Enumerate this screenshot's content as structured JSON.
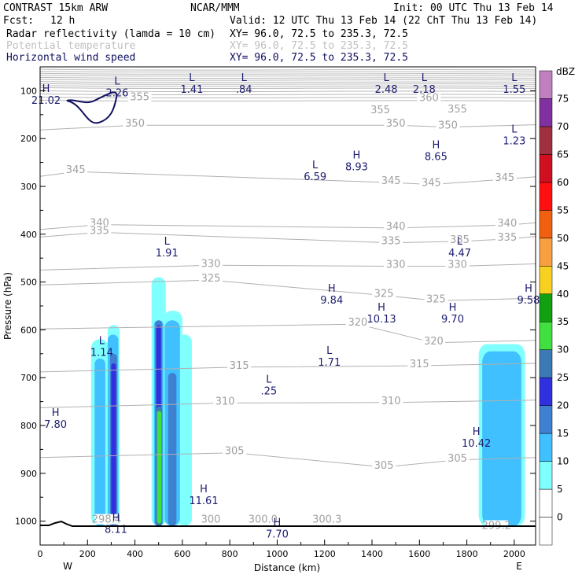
{
  "header": {
    "model": "CONTRAST 15km ARW",
    "center": "NCAR/MMM",
    "init": "Init: 00 UTC Thu 13 Feb 14",
    "fcst_label": "Fcst:",
    "fcst_value": "12 h",
    "valid": "Valid: 12 UTC Thu 13 Feb 14 (22 ChT Thu 13 Feb 14)",
    "fields": [
      {
        "name": "Radar reflectivity (lamda = 10 cm)",
        "xy": "XY=  96.0, 72.5 to 235.3, 72.5",
        "color": "#000000"
      },
      {
        "name": "Potential temperature",
        "xy": "XY=  96.0, 72.5 to 235.3, 72.5",
        "color": "#c0c0c0"
      },
      {
        "name": "Horizontal wind speed",
        "xy": "XY=  96.0, 72.5 to 235.3, 72.5",
        "color": "#101060"
      }
    ]
  },
  "chart_data": {
    "type": "cross-section",
    "xlabel": "Distance (km)",
    "ylabel": "Pressure (hPa)",
    "x_ticks": [
      0,
      200,
      400,
      600,
      800,
      1000,
      1200,
      1400,
      1600,
      1800,
      2000
    ],
    "y_ticks": [
      100,
      200,
      300,
      400,
      500,
      600,
      700,
      800,
      900,
      1000
    ],
    "xlim": [
      0,
      2090
    ],
    "ylim_top_hPa": 50,
    "ylim_bottom_hPa": 1050,
    "west_label": "W",
    "east_label": "E",
    "colorbar": {
      "unit": "dBZ",
      "levels": [
        {
          "value": "0",
          "color": "#ffffff"
        },
        {
          "value": "5",
          "color": "#80ffff"
        },
        {
          "value": "10",
          "color": "#40c0ff"
        },
        {
          "value": "15",
          "color": "#4080d0"
        },
        {
          "value": "20",
          "color": "#3030e0"
        },
        {
          "value": "25",
          "color": "#3c7ab4"
        },
        {
          "value": "30",
          "color": "#40e040"
        },
        {
          "value": "35",
          "color": "#10a010"
        },
        {
          "value": "40",
          "color": "#f8d020"
        },
        {
          "value": "45",
          "color": "#f8a040"
        },
        {
          "value": "50",
          "color": "#f06010"
        },
        {
          "value": "55",
          "color": "#ff1010"
        },
        {
          "value": "60",
          "color": "#d01020"
        },
        {
          "value": "65",
          "color": "#a03040"
        },
        {
          "value": "70",
          "color": "#8030a0"
        },
        {
          "value": "75",
          "color": "#c080c0"
        }
      ]
    },
    "theta_labels": [
      {
        "text": "355",
        "x": 420,
        "p": 117
      },
      {
        "text": "360",
        "x": 1640,
        "p": 118
      },
      {
        "text": "355",
        "x": 1435,
        "p": 144
      },
      {
        "text": "355",
        "x": 1760,
        "p": 142
      },
      {
        "text": "350",
        "x": 400,
        "p": 172
      },
      {
        "text": "350",
        "x": 1500,
        "p": 172
      },
      {
        "text": "350",
        "x": 1720,
        "p": 176
      },
      {
        "text": "345",
        "x": 150,
        "p": 269
      },
      {
        "text": "345",
        "x": 1480,
        "p": 292
      },
      {
        "text": "345",
        "x": 1650,
        "p": 296
      },
      {
        "text": "345",
        "x": 1960,
        "p": 285
      },
      {
        "text": "340",
        "x": 250,
        "p": 380
      },
      {
        "text": "340",
        "x": 1500,
        "p": 387
      },
      {
        "text": "340",
        "x": 1970,
        "p": 381
      },
      {
        "text": "335",
        "x": 250,
        "p": 396
      },
      {
        "text": "335",
        "x": 1480,
        "p": 418
      },
      {
        "text": "335",
        "x": 1770,
        "p": 415
      },
      {
        "text": "335",
        "x": 1970,
        "p": 410
      },
      {
        "text": "330",
        "x": 720,
        "p": 465
      },
      {
        "text": "330",
        "x": 1500,
        "p": 467
      },
      {
        "text": "330",
        "x": 1760,
        "p": 467
      },
      {
        "text": "325",
        "x": 720,
        "p": 496
      },
      {
        "text": "325",
        "x": 1450,
        "p": 528
      },
      {
        "text": "325",
        "x": 1670,
        "p": 539
      },
      {
        "text": "320",
        "x": 1340,
        "p": 588
      },
      {
        "text": "320",
        "x": 1660,
        "p": 627
      },
      {
        "text": "315",
        "x": 840,
        "p": 678
      },
      {
        "text": "315",
        "x": 1600,
        "p": 675
      },
      {
        "text": "310",
        "x": 780,
        "p": 753
      },
      {
        "text": "310",
        "x": 1480,
        "p": 752
      },
      {
        "text": "305",
        "x": 820,
        "p": 857
      },
      {
        "text": "305",
        "x": 1450,
        "p": 887
      },
      {
        "text": "305",
        "x": 1760,
        "p": 872
      },
      {
        "text": "300",
        "x": 720,
        "p": 1000
      },
      {
        "text": "300.0",
        "x": 940,
        "p": 1000
      },
      {
        "text": "300.3",
        "x": 1210,
        "p": 1000
      },
      {
        "text": "299.2",
        "x": 1925,
        "p": 1013
      },
      {
        "text": "298.4",
        "x": 280,
        "p": 1000
      }
    ],
    "wind_extrema": [
      {
        "kind": "H",
        "value": "21.02",
        "x": 25,
        "p": 103
      },
      {
        "kind": "L",
        "value": "2.26",
        "x": 325,
        "p": 87
      },
      {
        "kind": "L",
        "value": "1.41",
        "x": 640,
        "p": 80
      },
      {
        "kind": "L",
        "value": ".84",
        "x": 860,
        "p": 80
      },
      {
        "kind": "L",
        "value": "2.48",
        "x": 1460,
        "p": 80
      },
      {
        "kind": "L",
        "value": "2.18",
        "x": 1620,
        "p": 80
      },
      {
        "kind": "L",
        "value": "1.55",
        "x": 2000,
        "p": 80
      },
      {
        "kind": "L",
        "value": "1.23",
        "x": 2000,
        "p": 187
      },
      {
        "kind": "H",
        "value": "8.93",
        "x": 1335,
        "p": 242
      },
      {
        "kind": "H",
        "value": "8.65",
        "x": 1670,
        "p": 220
      },
      {
        "kind": "L",
        "value": "6.59",
        "x": 1160,
        "p": 262
      },
      {
        "kind": "L",
        "value": "1.91",
        "x": 535,
        "p": 422
      },
      {
        "kind": "L",
        "value": "4.47",
        "x": 1770,
        "p": 422
      },
      {
        "kind": "H",
        "value": "9.84",
        "x": 1230,
        "p": 520
      },
      {
        "kind": "H",
        "value": "10.13",
        "x": 1440,
        "p": 560
      },
      {
        "kind": "H",
        "value": "9.70",
        "x": 1740,
        "p": 560
      },
      {
        "kind": "H",
        "value": "9.58",
        "x": 2060,
        "p": 520
      },
      {
        "kind": "L",
        "value": "1.14",
        "x": 260,
        "p": 630
      },
      {
        "kind": "L",
        "value": "1.71",
        "x": 1220,
        "p": 650
      },
      {
        "kind": "L",
        "value": ".25",
        "x": 965,
        "p": 710
      },
      {
        "kind": "H",
        "value": "7.80",
        "x": 65,
        "p": 780
      },
      {
        "kind": "H",
        "value": "10.42",
        "x": 1840,
        "p": 820
      },
      {
        "kind": "H",
        "value": "11.61",
        "x": 690,
        "p": 940
      },
      {
        "kind": "H",
        "value": "8.11",
        "x": 320,
        "p": 1000
      },
      {
        "kind": "H",
        "value": "7.70",
        "x": 1000,
        "p": 1010
      }
    ],
    "reflectivity_cells": [
      {
        "x": [
          215,
          290
        ],
        "p_top": 620,
        "p_bot": 1010,
        "dbz": 5
      },
      {
        "x": [
          285,
          335
        ],
        "p_top": 590,
        "p_bot": 1010,
        "dbz": 5
      },
      {
        "x": [
          230,
          275
        ],
        "p_top": 660,
        "p_bot": 1010,
        "dbz": 10
      },
      {
        "x": [
          285,
          330
        ],
        "p_top": 610,
        "p_bot": 1010,
        "dbz": 10
      },
      {
        "x": [
          295,
          325
        ],
        "p_top": 650,
        "p_bot": 1010,
        "dbz": 15
      },
      {
        "x": [
          300,
          320
        ],
        "p_top": 670,
        "p_bot": 1005,
        "dbz": 20
      },
      {
        "x": [
          470,
          530
        ],
        "p_top": 490,
        "p_bot": 1010,
        "dbz": 5
      },
      {
        "x": [
          520,
          600
        ],
        "p_top": 560,
        "p_bot": 1010,
        "dbz": 5
      },
      {
        "x": [
          580,
          640
        ],
        "p_top": 610,
        "p_bot": 1010,
        "dbz": 5
      },
      {
        "x": [
          480,
          520
        ],
        "p_top": 580,
        "p_bot": 1010,
        "dbz": 10
      },
      {
        "x": [
          525,
          590
        ],
        "p_top": 580,
        "p_bot": 1010,
        "dbz": 10
      },
      {
        "x": [
          485,
          515
        ],
        "p_top": 580,
        "p_bot": 1010,
        "dbz": 15
      },
      {
        "x": [
          490,
          510
        ],
        "p_top": 590,
        "p_bot": 1010,
        "dbz": 20
      },
      {
        "x": [
          540,
          575
        ],
        "p_top": 690,
        "p_bot": 1010,
        "dbz": 15
      },
      {
        "x": [
          490,
          515
        ],
        "p_top": 760,
        "p_bot": 1010,
        "dbz": 25
      },
      {
        "x": [
          493,
          512
        ],
        "p_top": 770,
        "p_bot": 1005,
        "dbz": 30
      },
      {
        "x": [
          1850,
          2045
        ],
        "p_top": 630,
        "p_bot": 1010,
        "dbz": 5
      },
      {
        "x": [
          1865,
          2030
        ],
        "p_top": 645,
        "p_bot": 1010,
        "dbz": 10
      }
    ]
  }
}
